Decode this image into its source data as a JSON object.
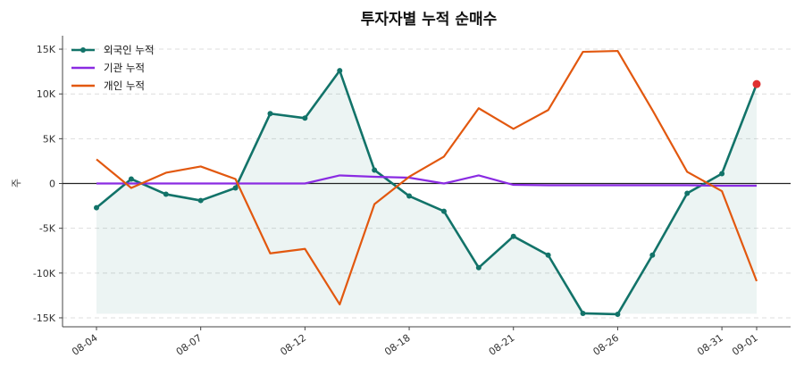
{
  "chart_data": {
    "type": "line",
    "title": "투자자별 누적 순매수",
    "xlabel": "",
    "ylabel": "주",
    "ylim": [
      -16000,
      16500
    ],
    "yticks": [
      -15000,
      -10000,
      -5000,
      0,
      5000,
      10000,
      15000
    ],
    "ytick_labels": [
      "-15K",
      "-10K",
      "-5K",
      "0",
      "5K",
      "10K",
      "15K"
    ],
    "x": [
      "08-04",
      "08-05",
      "08-06",
      "08-07",
      "08-08",
      "08-11",
      "08-12",
      "08-14",
      "08-15",
      "08-18",
      "08-19",
      "08-20",
      "08-21",
      "08-22",
      "08-25",
      "08-26",
      "08-27",
      "08-28",
      "08-31",
      "09-01"
    ],
    "xtick_labels": [
      "08-04",
      "08-07",
      "08-12",
      "08-18",
      "08-21",
      "08-26",
      "08-31",
      "09-01"
    ],
    "xtick_indices": [
      0,
      3,
      6,
      9,
      12,
      15,
      18,
      19
    ],
    "grid": "horizontal dashed",
    "legend_position": "top-left",
    "series": [
      {
        "name": "외국인 누적",
        "color": "#127369",
        "marker": true,
        "fill": true,
        "values": [
          -2700,
          500,
          -1200,
          -1900,
          -500,
          7800,
          7300,
          12600,
          1500,
          -1400,
          -3100,
          -9400,
          -5900,
          -8000,
          -14500,
          -14600,
          -8000,
          -1100,
          1100,
          11100
        ]
      },
      {
        "name": "기관 누적",
        "color": "#8a2be2",
        "marker": false,
        "fill": false,
        "values": [
          0,
          0,
          0,
          0,
          0,
          0,
          0,
          900,
          750,
          650,
          0,
          900,
          -150,
          -200,
          -200,
          -200,
          -200,
          -200,
          -250,
          -250
        ]
      },
      {
        "name": "개인 누적",
        "color": "#e2580f",
        "marker": false,
        "fill": false,
        "values": [
          2700,
          -500,
          1200,
          1900,
          500,
          -7800,
          -7300,
          -13500,
          -2300,
          750,
          3000,
          8400,
          6100,
          8200,
          14700,
          14800,
          8200,
          1300,
          -850,
          -10900
        ]
      }
    ],
    "highlight_last_point_color": "#e03131"
  }
}
